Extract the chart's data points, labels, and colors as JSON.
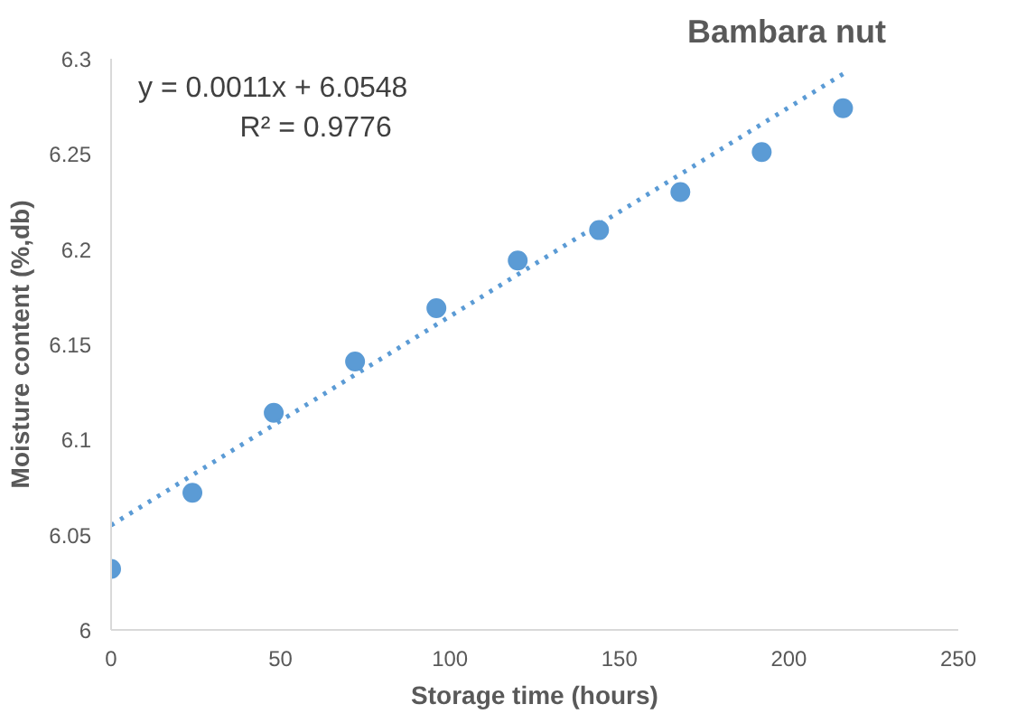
{
  "chart_data": {
    "type": "scatter",
    "title": "Bambara nut",
    "xlabel": "Storage time (hours)",
    "ylabel": "Moisture content (%,db)",
    "xlim": [
      0,
      250
    ],
    "xticks": [
      0,
      50,
      100,
      150,
      200,
      250
    ],
    "ylim": [
      6,
      6.3
    ],
    "yticks": [
      6,
      6.05,
      6.1,
      6.15,
      6.2,
      6.25,
      6.3
    ],
    "grid": false,
    "marker": "circle",
    "series": [
      {
        "color": "#5b9bd5",
        "x": [
          0,
          24,
          48,
          72,
          96,
          120,
          144,
          168,
          192,
          216
        ],
        "values": [
          6.032,
          6.072,
          6.114,
          6.141,
          6.169,
          6.194,
          6.21,
          6.23,
          6.251,
          6.274
        ]
      },
      {
        "type": "line",
        "color": "#5b9bd5",
        "line_style": "dotted",
        "marker": "none",
        "x": [
          0,
          216
        ],
        "values": [
          6.055,
          6.292
        ]
      }
    ],
    "annotations": [
      "y = 0.0011x + 6.0548",
      "R² = 0.9776"
    ]
  }
}
